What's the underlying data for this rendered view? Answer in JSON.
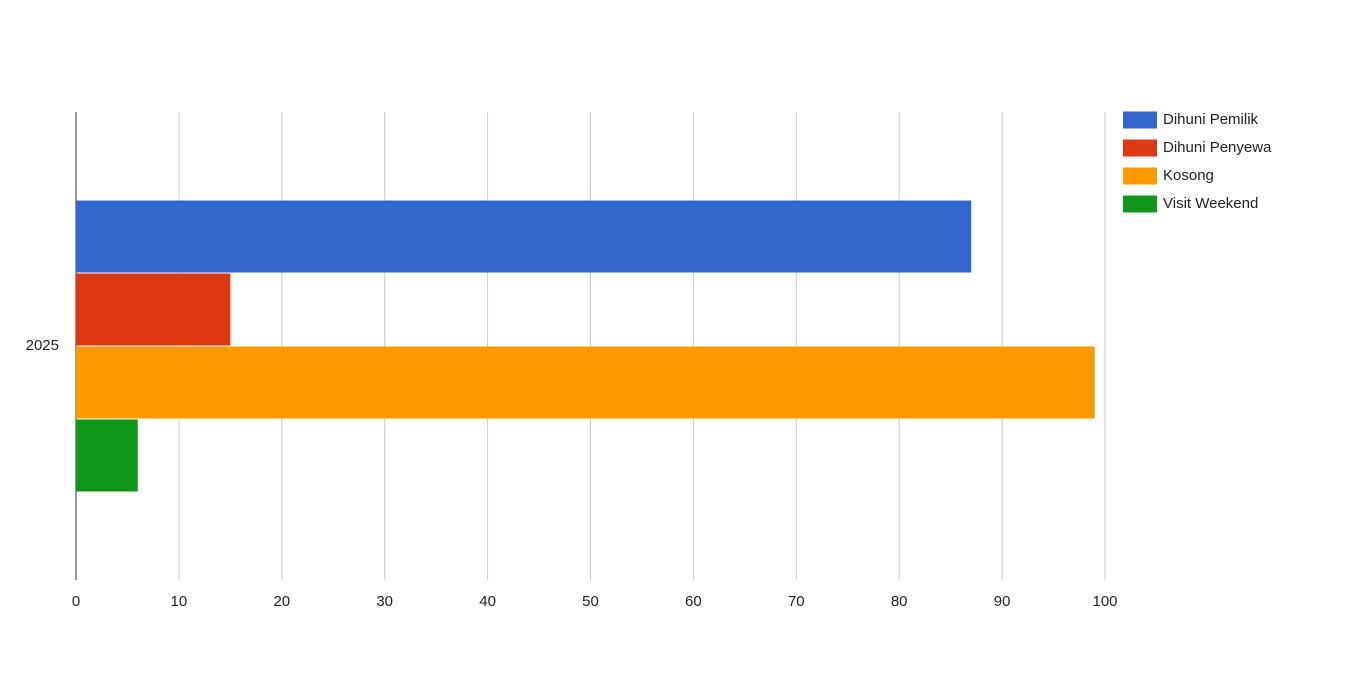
{
  "chart_data": {
    "type": "bar",
    "orientation": "horizontal",
    "categories": [
      "2025"
    ],
    "series": [
      {
        "name": "Dihuni Pemilik",
        "color": "#3366cc",
        "values": [
          87
        ]
      },
      {
        "name": "Dihuni Penyewa",
        "color": "#dc3912",
        "values": [
          15
        ]
      },
      {
        "name": "Kosong",
        "color": "#ff9900",
        "values": [
          99
        ]
      },
      {
        "name": "Visit Weekend",
        "color": "#109618",
        "values": [
          6
        ]
      }
    ],
    "xlim": [
      0,
      100
    ],
    "xticks": [
      0,
      10,
      20,
      30,
      40,
      50,
      60,
      70,
      80,
      90,
      100
    ],
    "grid": true,
    "legend": "right"
  }
}
